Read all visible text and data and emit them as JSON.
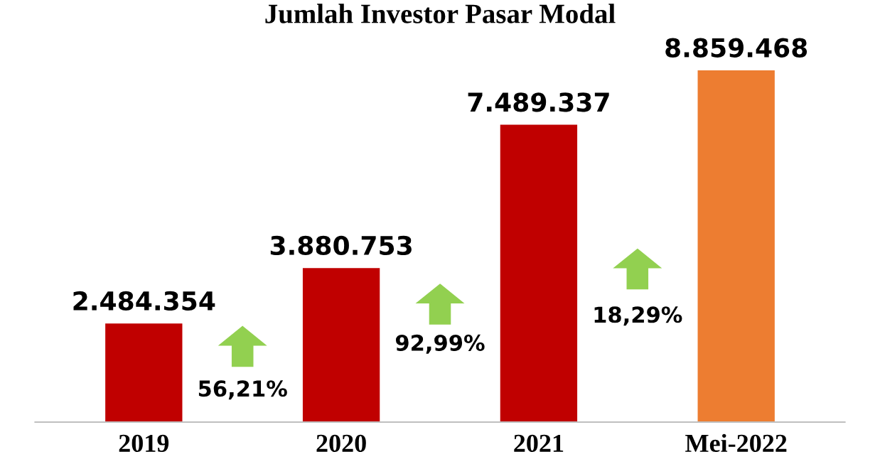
{
  "chart_data": {
    "type": "bar",
    "title": "Jumlah Investor Pasar Modal",
    "categories": [
      "2019",
      "2020",
      "2021",
      "Mei-2022"
    ],
    "values": [
      2484354,
      3880753,
      7489337,
      8859468
    ],
    "colors": [
      "#c00000",
      "#c00000",
      "#c00000",
      "#ed7d31"
    ],
    "value_labels": [
      "2.484.354",
      "3.880.753",
      "7.489.337",
      "8.859.468"
    ],
    "annotations": [
      "56,21%",
      "92,99%",
      "18,29%"
    ],
    "grid": false,
    "legend": false
  }
}
